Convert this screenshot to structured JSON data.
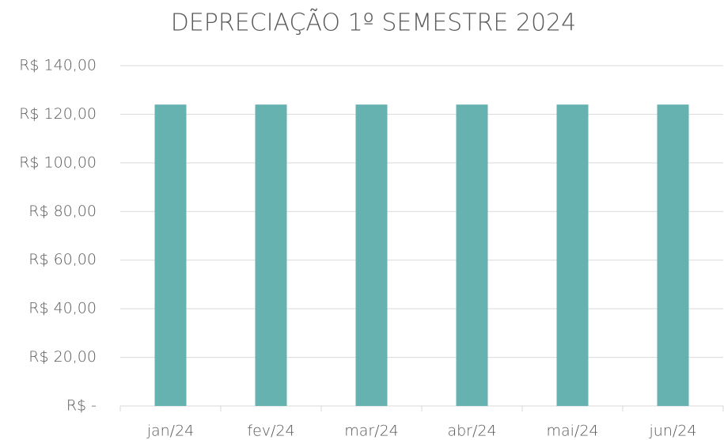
{
  "chart_data": {
    "type": "bar",
    "title": "DEPRECIAÇÃO 1º SEMESTRE 2024",
    "categories": [
      "jan/24",
      "fev/24",
      "mar/24",
      "abr/24",
      "mai/24",
      "jun/24"
    ],
    "values": [
      124,
      124,
      124,
      124,
      124,
      124
    ],
    "color": "#66b2b0",
    "ylim": [
      0,
      140
    ],
    "yticks": [
      {
        "value": 0,
        "label": "R$ -"
      },
      {
        "value": 20,
        "label": "R$ 20,00"
      },
      {
        "value": 40,
        "label": "R$ 40,00"
      },
      {
        "value": 60,
        "label": "R$ 60,00"
      },
      {
        "value": 80,
        "label": "R$ 80,00"
      },
      {
        "value": 100,
        "label": "R$ 100,00"
      },
      {
        "value": 120,
        "label": "R$ 120,00"
      },
      {
        "value": 140,
        "label": "R$ 140,00"
      }
    ],
    "grid": true
  }
}
